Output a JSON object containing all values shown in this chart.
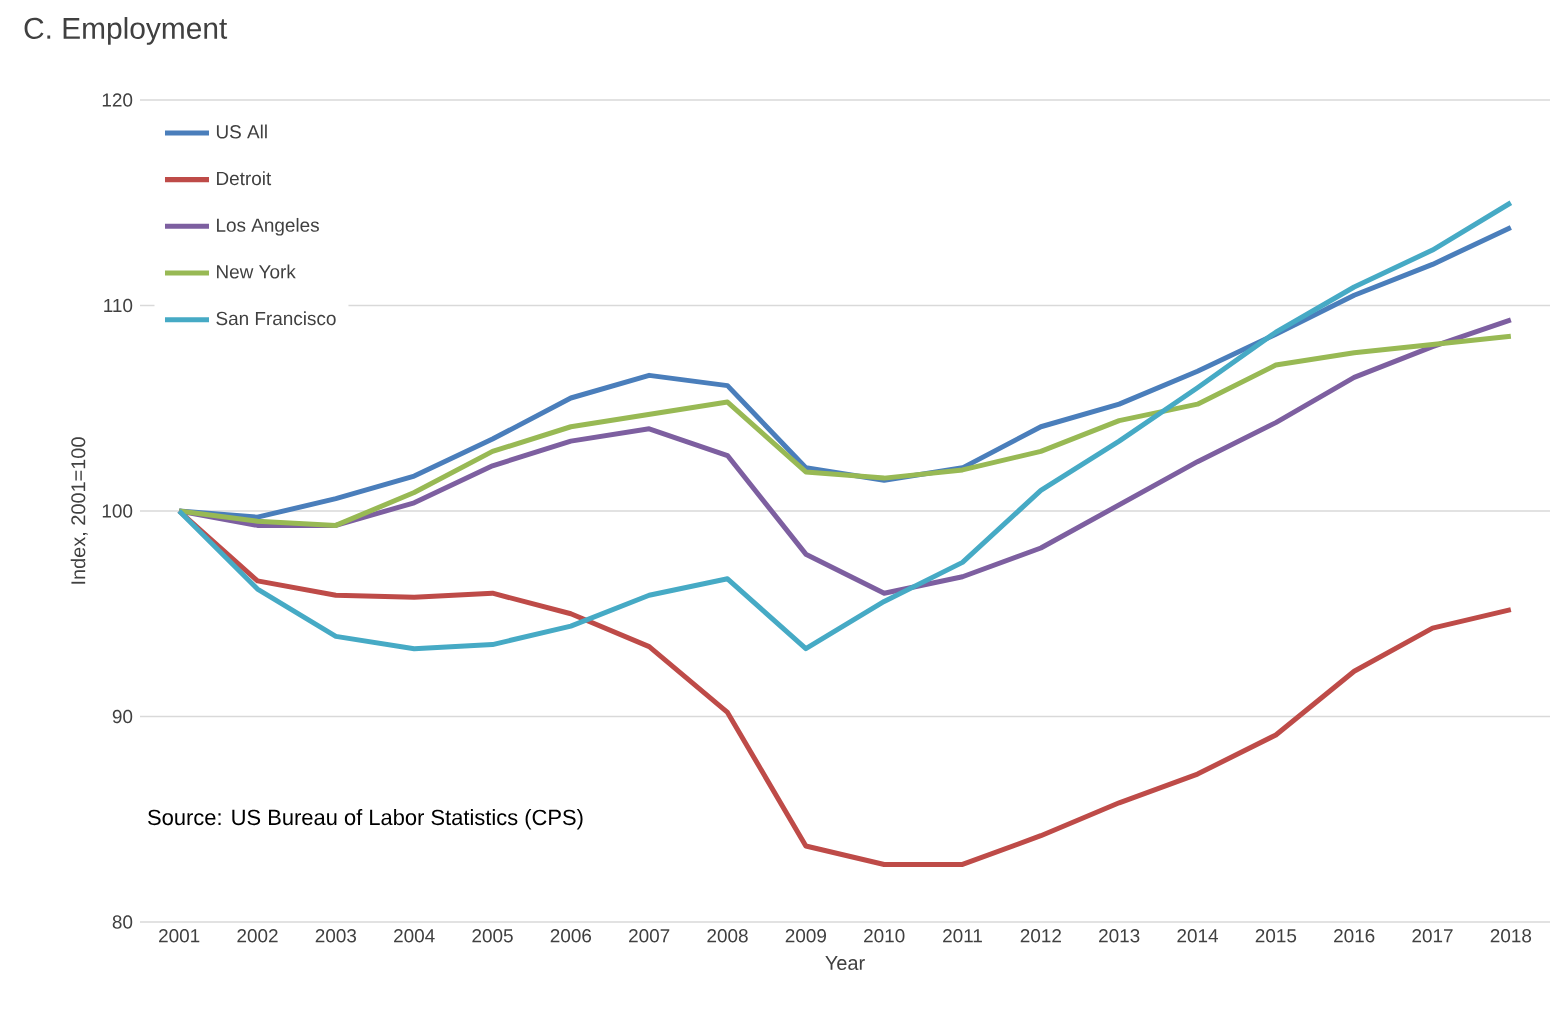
{
  "chart_data": {
    "type": "line",
    "title": "C. Employment",
    "xlabel": "Year",
    "ylabel": "Index, 2001=100",
    "categories": [
      "2001",
      "2002",
      "2003",
      "2004",
      "2005",
      "2006",
      "2007",
      "2008",
      "2009",
      "2010",
      "2011",
      "2012",
      "2013",
      "2014",
      "2015",
      "2016",
      "2017",
      "2018"
    ],
    "series": [
      {
        "name": "US All",
        "color": "#4a7ebb",
        "values": [
          100,
          99.7,
          100.6,
          101.7,
          103.5,
          105.5,
          106.6,
          106.1,
          102.1,
          101.5,
          102.1,
          104.1,
          105.2,
          106.8,
          108.6,
          110.5,
          112.0,
          113.8
        ]
      },
      {
        "name": "Detroit",
        "color": "#be4b48",
        "values": [
          100,
          96.6,
          95.9,
          95.8,
          96.0,
          95.0,
          93.4,
          90.2,
          83.7,
          82.8,
          82.8,
          84.2,
          85.8,
          87.2,
          89.1,
          92.2,
          94.3,
          95.2
        ]
      },
      {
        "name": "Los Angeles",
        "color": "#7d5fa0",
        "values": [
          100,
          99.3,
          99.3,
          100.4,
          102.2,
          103.4,
          104.0,
          102.7,
          97.9,
          96.0,
          96.8,
          98.2,
          100.3,
          102.4,
          104.3,
          106.5,
          108.0,
          109.3
        ]
      },
      {
        "name": "New York",
        "color": "#98b954",
        "values": [
          100,
          99.5,
          99.3,
          100.9,
          102.9,
          104.1,
          104.7,
          105.3,
          101.9,
          101.6,
          102.0,
          102.9,
          104.4,
          105.2,
          107.1,
          107.7,
          108.1,
          108.5
        ]
      },
      {
        "name": "San Francisco",
        "color": "#46aac5",
        "values": [
          100,
          96.2,
          93.9,
          93.3,
          93.5,
          94.4,
          95.9,
          96.7,
          93.3,
          95.6,
          97.5,
          101.0,
          103.4,
          106.0,
          108.7,
          110.9,
          112.7,
          115.0
        ]
      }
    ],
    "ylim": [
      80,
      120
    ],
    "yticks": [
      80,
      90,
      100,
      110,
      120
    ],
    "grid": "y",
    "legend": "top left",
    "marker": "none",
    "annotations": [
      "Source: US Bureau of Labor Statistics (CPS)"
    ]
  }
}
